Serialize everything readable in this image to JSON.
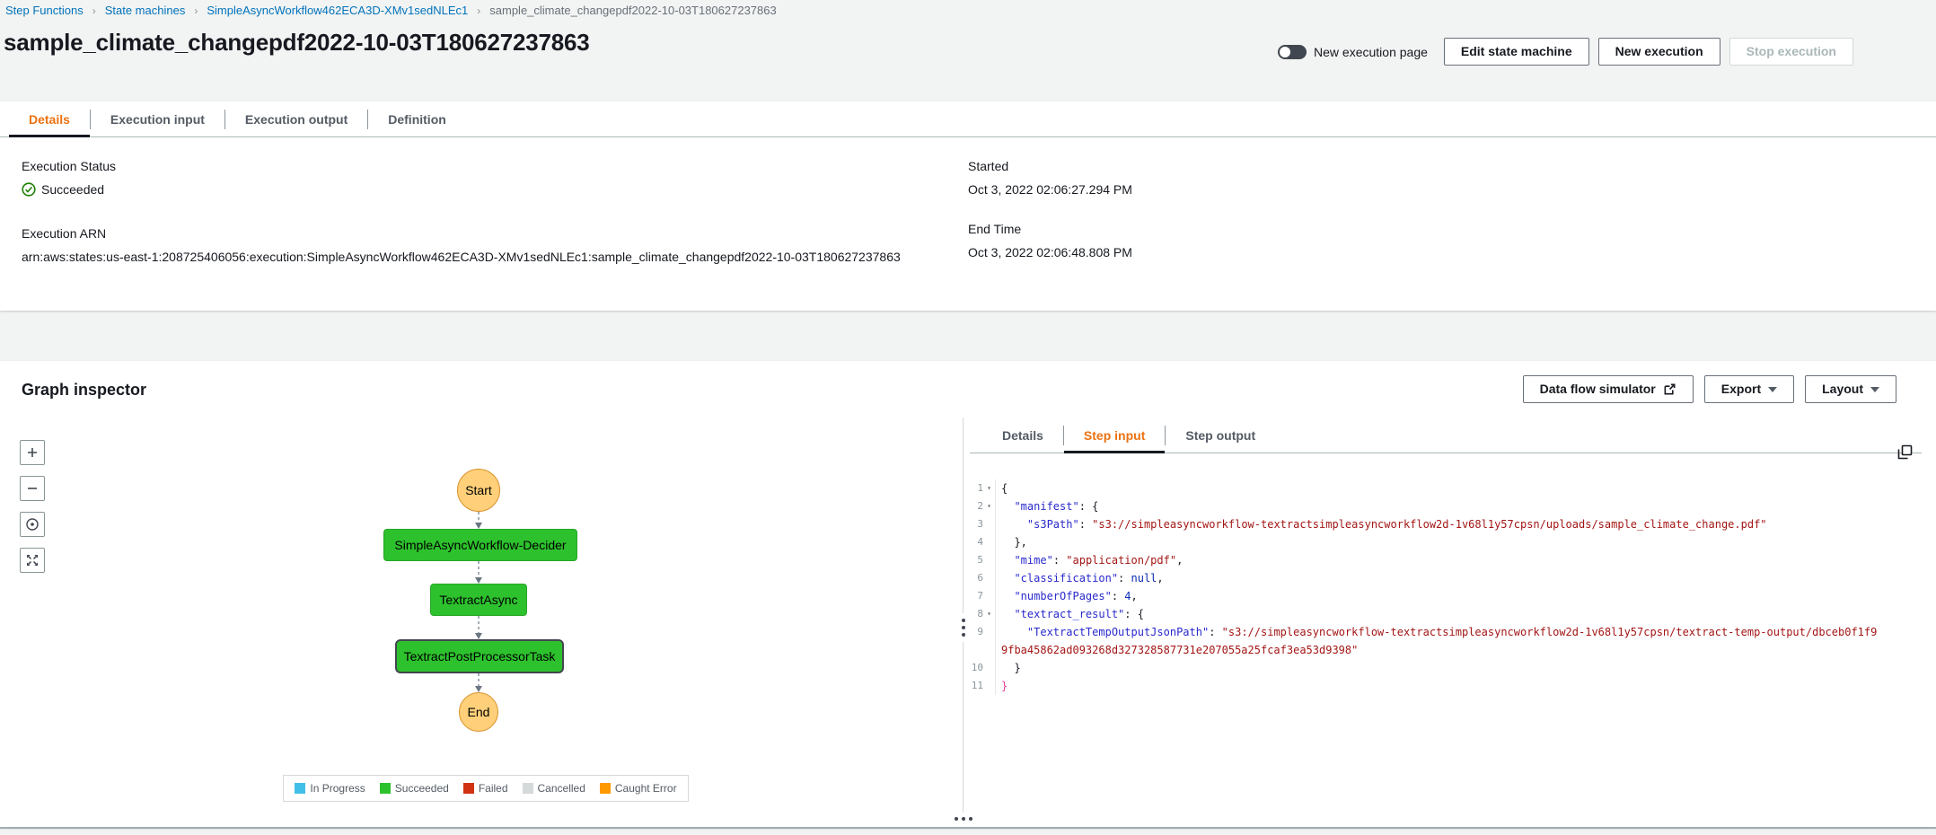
{
  "breadcrumb": {
    "items": [
      {
        "label": "Step Functions",
        "current": false
      },
      {
        "label": "State machines",
        "current": false
      },
      {
        "label": "SimpleAsyncWorkflow462ECA3D-XMv1sedNLEc1",
        "current": false
      },
      {
        "label": "sample_climate_changepdf2022-10-03T180627237863",
        "current": true
      }
    ]
  },
  "header": {
    "title": "sample_climate_changepdf2022-10-03T180627237863",
    "toggle_label": "New execution page",
    "buttons": {
      "edit": "Edit state machine",
      "new": "New execution",
      "stop": "Stop execution"
    }
  },
  "details_tabs": {
    "items": [
      "Details",
      "Execution input",
      "Execution output",
      "Definition"
    ],
    "active": 0
  },
  "details": {
    "execution_status_label": "Execution Status",
    "execution_status": "Succeeded",
    "execution_arn_label": "Execution ARN",
    "execution_arn": "arn:aws:states:us-east-1:208725406056:execution:SimpleAsyncWorkflow462ECA3D-XMv1sedNLEc1:sample_climate_changepdf2022-10-03T180627237863",
    "started_label": "Started",
    "started": "Oct 3, 2022 02:06:27.294 PM",
    "end_time_label": "End Time",
    "end_time": "Oct 3, 2022 02:06:48.808 PM"
  },
  "graph": {
    "title": "Graph inspector",
    "dataflow_button": "Data flow simulator",
    "export_button": "Export",
    "layout_button": "Layout",
    "nodes": [
      {
        "label": "Start",
        "status": "start"
      },
      {
        "label": "SimpleAsyncWorkflow-Decider",
        "status": "succeeded"
      },
      {
        "label": "TextractAsync",
        "status": "succeeded"
      },
      {
        "label": "TextractPostProcessorTask",
        "status": "succeeded-selected"
      },
      {
        "label": "End",
        "status": "end"
      }
    ],
    "legend": [
      {
        "label": "In Progress",
        "color": "#42bfe8"
      },
      {
        "label": "Succeeded",
        "color": "#2dc22d"
      },
      {
        "label": "Failed",
        "color": "#d13212"
      },
      {
        "label": "Cancelled",
        "color": "#d5d9d9"
      },
      {
        "label": "Caught Error",
        "color": "#ff9900"
      }
    ]
  },
  "step_panel": {
    "tabs": {
      "items": [
        "Details",
        "Step input",
        "Step output"
      ],
      "active": 1
    },
    "code_lines": [
      {
        "fold": true,
        "segments": [
          {
            "t": "p",
            "v": "{"
          }
        ]
      },
      {
        "fold": true,
        "segments": [
          {
            "t": "p",
            "v": "  "
          },
          {
            "t": "k",
            "v": "\"manifest\""
          },
          {
            "t": "p",
            "v": ": {"
          }
        ]
      },
      {
        "fold": false,
        "segments": [
          {
            "t": "p",
            "v": "    "
          },
          {
            "t": "k",
            "v": "\"s3Path\""
          },
          {
            "t": "p",
            "v": ": "
          },
          {
            "t": "s",
            "v": "\"s3://simpleasyncworkflow-textractsimpleasyncworkflow2d-1v68l1y57cpsn/uploads/sample_climate_change.pdf\""
          }
        ]
      },
      {
        "fold": false,
        "segments": [
          {
            "t": "p",
            "v": "  },"
          }
        ]
      },
      {
        "fold": false,
        "segments": [
          {
            "t": "p",
            "v": "  "
          },
          {
            "t": "k",
            "v": "\"mime\""
          },
          {
            "t": "p",
            "v": ": "
          },
          {
            "t": "s",
            "v": "\"application/pdf\""
          },
          {
            "t": "p",
            "v": ","
          }
        ]
      },
      {
        "fold": false,
        "segments": [
          {
            "t": "p",
            "v": "  "
          },
          {
            "t": "k",
            "v": "\"classification\""
          },
          {
            "t": "p",
            "v": ": "
          },
          {
            "t": "n",
            "v": "null"
          },
          {
            "t": "p",
            "v": ","
          }
        ]
      },
      {
        "fold": false,
        "segments": [
          {
            "t": "p",
            "v": "  "
          },
          {
            "t": "k",
            "v": "\"numberOfPages\""
          },
          {
            "t": "p",
            "v": ": "
          },
          {
            "t": "n",
            "v": "4"
          },
          {
            "t": "p",
            "v": ","
          }
        ]
      },
      {
        "fold": true,
        "segments": [
          {
            "t": "p",
            "v": "  "
          },
          {
            "t": "k",
            "v": "\"textract_result\""
          },
          {
            "t": "p",
            "v": ": {"
          }
        ]
      },
      {
        "fold": false,
        "segments": [
          {
            "t": "p",
            "v": "    "
          },
          {
            "t": "k",
            "v": "\"TextractTempOutputJsonPath\""
          },
          {
            "t": "p",
            "v": ": "
          },
          {
            "t": "s",
            "v": "\"s3://simpleasyncworkflow-textractsimpleasyncworkflow2d-1v68l1y57cpsn/textract-temp-output/dbceb0f1f99fba45862ad093268d327328587731e207055a25fcaf3ea53d9398\""
          }
        ]
      },
      {
        "fold": false,
        "segments": [
          {
            "t": "p",
            "v": "  }"
          }
        ]
      },
      {
        "fold": false,
        "segments": [
          {
            "t": "m",
            "v": "}"
          }
        ]
      }
    ]
  },
  "colors": {
    "accent_orange": "#ec7211",
    "link_blue": "#0073bb",
    "success_green": "#1d8102",
    "node_green": "#2dc22d",
    "node_start_end": "#ffd079"
  }
}
